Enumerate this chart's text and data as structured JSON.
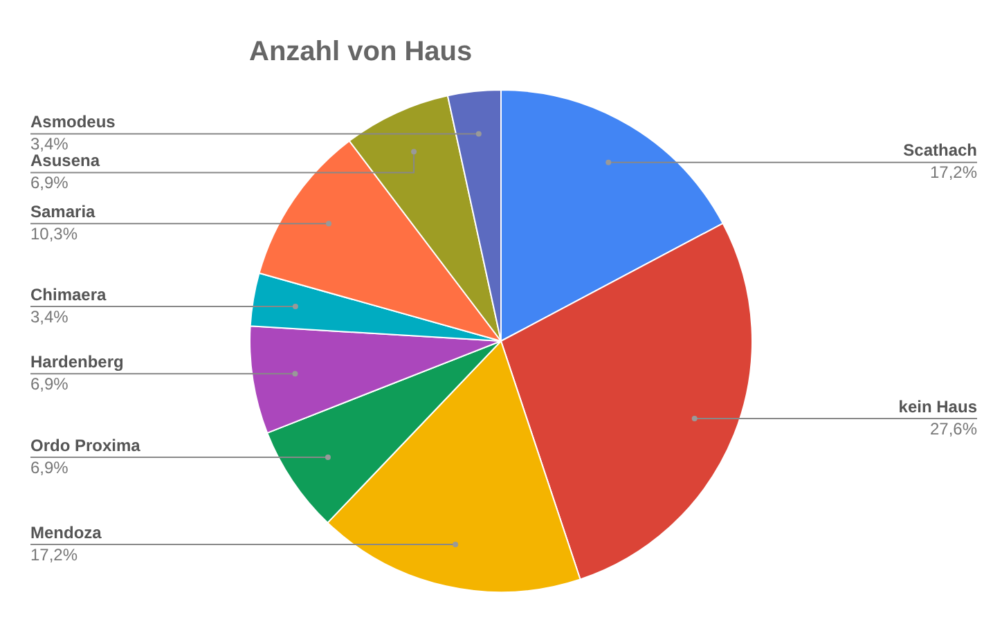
{
  "chart_data": {
    "type": "pie",
    "title": "Anzahl von Haus",
    "categories": [
      "Scathach",
      "kein Haus",
      "Mendoza",
      "Ordo Proxima",
      "Hardenberg",
      "Chimaera",
      "Samaria",
      "Asusena",
      "Asmodeus"
    ],
    "values": [
      17.2,
      27.6,
      17.2,
      6.9,
      6.9,
      3.4,
      10.3,
      6.9,
      3.4
    ],
    "value_labels": [
      "17,2%",
      "27,6%",
      "17,2%",
      "6,9%",
      "6,9%",
      "3,4%",
      "10,3%",
      "6,9%",
      "3,4%"
    ],
    "colors": [
      "#4285f4",
      "#db4437",
      "#f4b400",
      "#0f9d58",
      "#ab47bc",
      "#00acc1",
      "#ff7043",
      "#9e9d24",
      "#5c6bc0"
    ],
    "legend": false
  }
}
